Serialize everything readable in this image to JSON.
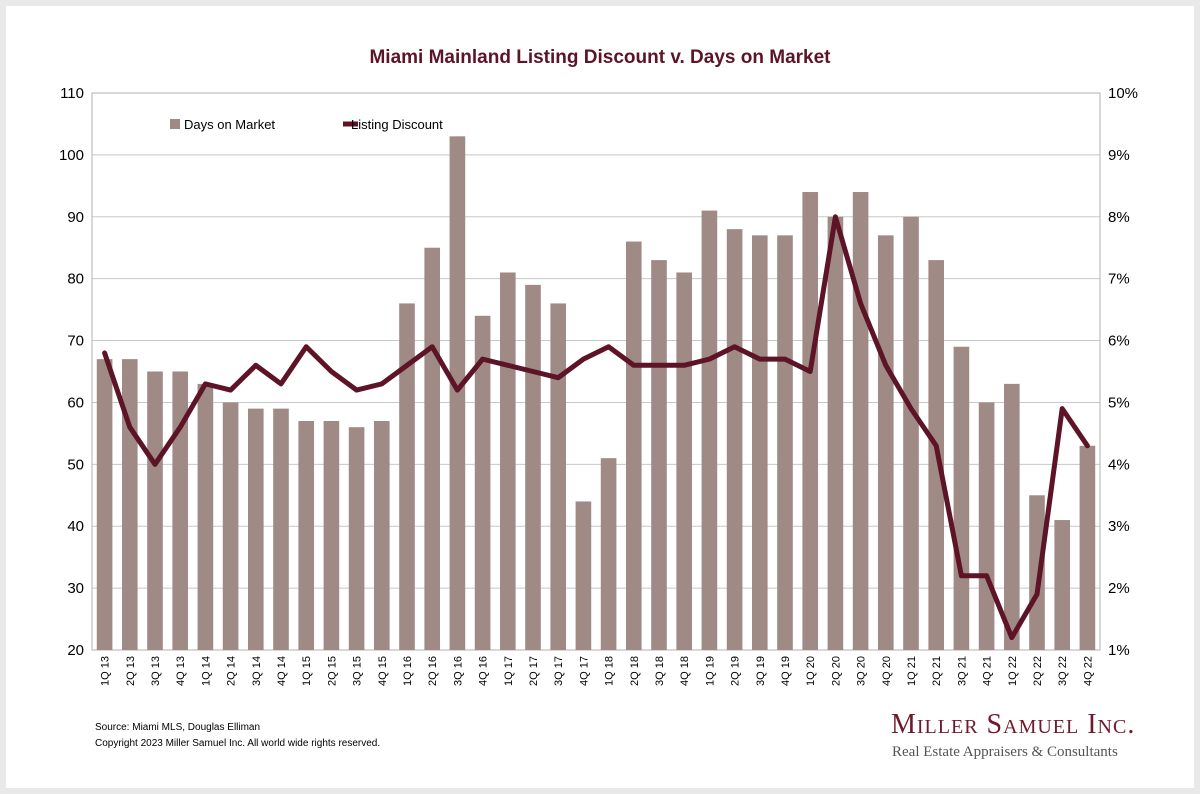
{
  "chart_data": {
    "type": "bar+line",
    "title": "Miami Mainland Listing Discount v. Days on Market",
    "categories": [
      "1Q 13",
      "2Q 13",
      "3Q 13",
      "4Q 13",
      "1Q 14",
      "2Q 14",
      "3Q 14",
      "4Q 14",
      "1Q 15",
      "2Q 15",
      "3Q 15",
      "4Q 15",
      "1Q 16",
      "2Q 16",
      "3Q 16",
      "4Q 16",
      "1Q 17",
      "2Q 17",
      "3Q 17",
      "4Q 17",
      "1Q 18",
      "2Q 18",
      "3Q 18",
      "4Q 18",
      "1Q 19",
      "2Q 19",
      "3Q 19",
      "4Q 19",
      "1Q 20",
      "2Q 20",
      "3Q 20",
      "4Q 20",
      "1Q 21",
      "2Q 21",
      "3Q 21",
      "4Q 21",
      "1Q 22",
      "2Q 22",
      "3Q 22",
      "4Q 22"
    ],
    "series": [
      {
        "name": "Days on Market",
        "type": "bar",
        "axis": "left",
        "color": "#a08a86",
        "values": [
          67,
          67,
          65,
          65,
          63,
          60,
          59,
          59,
          57,
          57,
          56,
          57,
          76,
          85,
          103,
          74,
          81,
          79,
          76,
          44,
          51,
          86,
          83,
          81,
          91,
          88,
          87,
          87,
          94,
          90,
          94,
          87,
          90,
          83,
          69,
          60,
          63,
          45,
          41,
          53
        ]
      },
      {
        "name": "Listing Discount",
        "type": "line",
        "axis": "right",
        "color": "#5c1426",
        "values": [
          5.8,
          4.6,
          4.0,
          4.6,
          5.3,
          5.2,
          5.6,
          5.3,
          5.9,
          5.5,
          5.2,
          5.3,
          5.6,
          5.9,
          5.2,
          5.7,
          5.6,
          5.5,
          5.4,
          5.7,
          5.9,
          5.6,
          5.6,
          5.6,
          5.7,
          5.9,
          5.7,
          5.7,
          5.5,
          8.0,
          6.6,
          5.6,
          4.9,
          4.3,
          2.2,
          2.2,
          1.2,
          1.9,
          4.9,
          4.3
        ]
      }
    ],
    "y_left": {
      "ylim": [
        20,
        110
      ],
      "ticks": [
        "20",
        "30",
        "40",
        "50",
        "60",
        "70",
        "80",
        "90",
        "100",
        "110"
      ]
    },
    "y_right": {
      "ylim": [
        1,
        10
      ],
      "ticks": [
        "1%",
        "2%",
        "3%",
        "4%",
        "5%",
        "6%",
        "7%",
        "8%",
        "9%",
        "10%"
      ]
    },
    "grid": true,
    "legend": "top-left"
  },
  "footer": {
    "source": "Source: Miami MLS, Douglas Elliman",
    "copyright": "Copyright 2023 Miller Samuel Inc.  All world wide rights reserved.",
    "brand": "Miller Samuel Inc.",
    "tagline": "Real Estate Appraisers & Consultants"
  }
}
